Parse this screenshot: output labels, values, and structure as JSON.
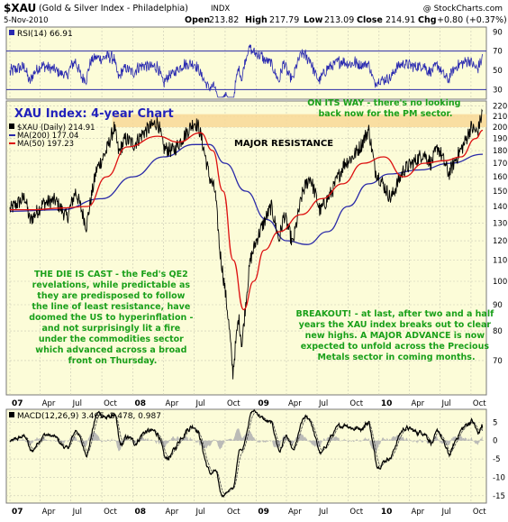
{
  "header": {
    "symbol": "$XAU",
    "description": "(Gold & Silver Index - Philadelphia)",
    "exchange": "INDX",
    "source": "@ StockCharts.com",
    "date": "5-Nov-2010",
    "ohlc": {
      "open_label": "Open",
      "open": "213.82",
      "high_label": "High",
      "high": "217.79",
      "low_label": "Low",
      "low": "213.09",
      "close_label": "Close",
      "close": "214.91",
      "chg_label": "Chg",
      "chg": "+0.80 (+0.37%)"
    }
  },
  "colors": {
    "panel_bg": "#fcfcd8",
    "grid": "#c8c8b4",
    "price_line": "#000000",
    "ma200": "#2a2aa8",
    "ma50": "#dd1111",
    "rsi_line": "#2a2ab0",
    "resistance_band": "#f8d898",
    "annotation_green": "#1aa01a",
    "title_blue": "#2222bb",
    "macd_signal": "#888888"
  },
  "chart_data": [
    {
      "type": "line",
      "panel": "rsi",
      "legend": "RSI(14) 66.91",
      "series": [
        {
          "name": "RSI(14)",
          "last": 66.91
        }
      ],
      "yticks": [
        30,
        50,
        70,
        90
      ],
      "ylim": [
        20,
        95
      ],
      "reference_lines": [
        30,
        70
      ]
    },
    {
      "type": "line",
      "panel": "price",
      "title": "XAU Index: 4-year Chart",
      "yscale": "log",
      "ylim": [
        60,
        225
      ],
      "yticks": [
        70,
        80,
        90,
        100,
        110,
        120,
        130,
        140,
        150,
        160,
        170,
        180,
        190,
        200,
        210,
        220
      ],
      "legend": [
        {
          "label": "$XAU (Daily) 214.91",
          "marker": "square",
          "color": "#000000"
        },
        {
          "label": "MA(200) 177.04",
          "marker": "line",
          "color": "#2a2aa8"
        },
        {
          "label": "MA(50) 197.23",
          "marker": "line",
          "color": "#dd1111"
        }
      ],
      "resistance_band": {
        "label": "MAJOR RESISTANCE",
        "low": 200,
        "high": 212
      },
      "anchors": [
        [
          "2007-01-01",
          138
        ],
        [
          "2007-02-15",
          146
        ],
        [
          "2007-03-01",
          131
        ],
        [
          "2007-04-10",
          142
        ],
        [
          "2007-05-15",
          144
        ],
        [
          "2007-06-20",
          133
        ],
        [
          "2007-07-15",
          150
        ],
        [
          "2007-08-16",
          128
        ],
        [
          "2007-09-15",
          165
        ],
        [
          "2007-10-15",
          180
        ],
        [
          "2007-11-07",
          200
        ],
        [
          "2007-11-20",
          178
        ],
        [
          "2007-12-10",
          190
        ],
        [
          "2008-01-05",
          185
        ],
        [
          "2008-02-01",
          195
        ],
        [
          "2008-03-15",
          205
        ],
        [
          "2008-04-01",
          182
        ],
        [
          "2008-05-01",
          180
        ],
        [
          "2008-06-01",
          192
        ],
        [
          "2008-07-01",
          205
        ],
        [
          "2008-07-15",
          200
        ],
        [
          "2008-08-15",
          160
        ],
        [
          "2008-09-01",
          150
        ],
        [
          "2008-09-15",
          115
        ],
        [
          "2008-10-10",
          85
        ],
        [
          "2008-10-24",
          66
        ],
        [
          "2008-11-10",
          85
        ],
        [
          "2008-11-20",
          75
        ],
        [
          "2008-12-15",
          110
        ],
        [
          "2009-01-01",
          120
        ],
        [
          "2009-02-15",
          140
        ],
        [
          "2009-03-10",
          120
        ],
        [
          "2009-03-25",
          135
        ],
        [
          "2009-04-20",
          118
        ],
        [
          "2009-05-20",
          150
        ],
        [
          "2009-06-10",
          160
        ],
        [
          "2009-07-10",
          137
        ],
        [
          "2009-08-15",
          150
        ],
        [
          "2009-09-20",
          170
        ],
        [
          "2009-10-15",
          175
        ],
        [
          "2009-11-10",
          185
        ],
        [
          "2009-12-01",
          198
        ],
        [
          "2009-12-20",
          165
        ],
        [
          "2010-02-05",
          145
        ],
        [
          "2010-03-15",
          165
        ],
        [
          "2010-04-20",
          172
        ],
        [
          "2010-05-12",
          178
        ],
        [
          "2010-06-05",
          170
        ],
        [
          "2010-06-25",
          183
        ],
        [
          "2010-07-27",
          162
        ],
        [
          "2010-08-20",
          175
        ],
        [
          "2010-09-10",
          185
        ],
        [
          "2010-10-01",
          200
        ],
        [
          "2010-10-20",
          195
        ],
        [
          "2010-11-05",
          215
        ]
      ],
      "ma50_anchors": [
        [
          "2007-01-01",
          138
        ],
        [
          "2007-03-15",
          138
        ],
        [
          "2007-06-01",
          139
        ],
        [
          "2007-08-20",
          140
        ],
        [
          "2007-10-15",
          160
        ],
        [
          "2007-12-15",
          183
        ],
        [
          "2008-03-15",
          192
        ],
        [
          "2008-05-15",
          187
        ],
        [
          "2008-07-20",
          195
        ],
        [
          "2008-08-25",
          180
        ],
        [
          "2008-09-25",
          150
        ],
        [
          "2008-10-25",
          110
        ],
        [
          "2008-11-25",
          88
        ],
        [
          "2008-12-25",
          100
        ],
        [
          "2009-01-25",
          115
        ],
        [
          "2009-03-10",
          125
        ],
        [
          "2009-05-15",
          135
        ],
        [
          "2009-07-15",
          145
        ],
        [
          "2009-09-15",
          155
        ],
        [
          "2009-11-15",
          170
        ],
        [
          "2010-01-15",
          175
        ],
        [
          "2010-03-15",
          160
        ],
        [
          "2010-05-15",
          170
        ],
        [
          "2010-07-15",
          172
        ],
        [
          "2010-09-01",
          175
        ],
        [
          "2010-10-15",
          190
        ],
        [
          "2010-11-05",
          197.23
        ]
      ],
      "ma200_anchors": [
        [
          "2007-01-01",
          137
        ],
        [
          "2007-06-01",
          138
        ],
        [
          "2007-10-01",
          145
        ],
        [
          "2008-01-01",
          160
        ],
        [
          "2008-04-01",
          175
        ],
        [
          "2008-07-01",
          185
        ],
        [
          "2008-08-15",
          185
        ],
        [
          "2008-10-01",
          170
        ],
        [
          "2008-12-01",
          150
        ],
        [
          "2009-02-01",
          132
        ],
        [
          "2009-04-01",
          120
        ],
        [
          "2009-06-01",
          118
        ],
        [
          "2009-08-01",
          125
        ],
        [
          "2009-10-01",
          140
        ],
        [
          "2009-12-01",
          155
        ],
        [
          "2010-02-01",
          162
        ],
        [
          "2010-05-01",
          165
        ],
        [
          "2010-08-01",
          170
        ],
        [
          "2010-11-05",
          177.04
        ]
      ],
      "x_ticks": [
        {
          "label": "07",
          "date": "2007-01-01",
          "bold": true
        },
        {
          "label": "Apr",
          "date": "2007-04-01"
        },
        {
          "label": "Jul",
          "date": "2007-07-01"
        },
        {
          "label": "Oct",
          "date": "2007-10-01"
        },
        {
          "label": "08",
          "date": "2008-01-01",
          "bold": true
        },
        {
          "label": "Apr",
          "date": "2008-04-01"
        },
        {
          "label": "Jul",
          "date": "2008-07-01"
        },
        {
          "label": "Oct",
          "date": "2008-10-01"
        },
        {
          "label": "09",
          "date": "2009-01-01",
          "bold": true
        },
        {
          "label": "Apr",
          "date": "2009-04-01"
        },
        {
          "label": "Jul",
          "date": "2009-07-01"
        },
        {
          "label": "Oct",
          "date": "2009-10-01"
        },
        {
          "label": "10",
          "date": "2010-01-01",
          "bold": true
        },
        {
          "label": "Apr",
          "date": "2010-04-01"
        },
        {
          "label": "Jul",
          "date": "2010-07-01"
        },
        {
          "label": "Oct",
          "date": "2010-10-01"
        }
      ]
    },
    {
      "type": "line",
      "panel": "macd",
      "legend": "MACD(12,26,9) 3.465, 2.478, 0.987",
      "series": [
        {
          "name": "MACD",
          "last": 3.465
        },
        {
          "name": "Signal",
          "last": 2.478
        },
        {
          "name": "Histogram",
          "last": 0.987
        }
      ],
      "yticks": [
        5,
        0,
        -5,
        -10,
        -15
      ],
      "ylim": [
        -17,
        8.5
      ]
    }
  ],
  "annotations": {
    "on_its_way": [
      "ON ITS WAY - there's no looking",
      "back now for the PM sector."
    ],
    "die_is_cast": [
      "THE DIE IS CAST - the Fed's QE2",
      "revelations, while predictable as",
      "they are predisposed to follow",
      "the line of least resistance, have",
      "doomed the US to hyperinflation -",
      "and not surprisingly lit a fire",
      "under the commodities sector",
      "which advanced across a broad",
      "front on Thursday."
    ],
    "breakout": [
      "BREAKOUT! - at last, after two and a half",
      "years the XAU index breaks out to clear",
      "new highs. A MAJOR ADVANCE is now",
      "expected to unfold across the Precious",
      "Metals sector in coming months."
    ]
  }
}
